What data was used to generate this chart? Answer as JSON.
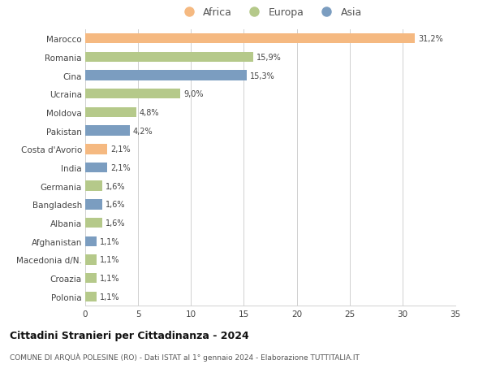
{
  "categories": [
    "Marocco",
    "Romania",
    "Cina",
    "Ucraina",
    "Moldova",
    "Pakistan",
    "Costa d'Avorio",
    "India",
    "Germania",
    "Bangladesh",
    "Albania",
    "Afghanistan",
    "Macedonia d/N.",
    "Croazia",
    "Polonia"
  ],
  "values": [
    31.2,
    15.9,
    15.3,
    9.0,
    4.8,
    4.2,
    2.1,
    2.1,
    1.6,
    1.6,
    1.6,
    1.1,
    1.1,
    1.1,
    1.1
  ],
  "labels": [
    "31,2%",
    "15,9%",
    "15,3%",
    "9,0%",
    "4,8%",
    "4,2%",
    "2,1%",
    "2,1%",
    "1,6%",
    "1,6%",
    "1,6%",
    "1,1%",
    "1,1%",
    "1,1%",
    "1,1%"
  ],
  "continents": [
    "Africa",
    "Europa",
    "Asia",
    "Europa",
    "Europa",
    "Asia",
    "Africa",
    "Asia",
    "Europa",
    "Asia",
    "Europa",
    "Asia",
    "Europa",
    "Europa",
    "Europa"
  ],
  "colors": {
    "Africa": "#F5B981",
    "Europa": "#B5C98A",
    "Asia": "#7B9DC0"
  },
  "legend_order": [
    "Africa",
    "Europa",
    "Asia"
  ],
  "title": "Cittadini Stranieri per Cittadinanza - 2024",
  "subtitle": "COMUNE DI ARQUÀ POLESINE (RO) - Dati ISTAT al 1° gennaio 2024 - Elaborazione TUTTITALIA.IT",
  "xlim": [
    0,
    35
  ],
  "xticks": [
    0,
    5,
    10,
    15,
    20,
    25,
    30,
    35
  ],
  "background_color": "#ffffff",
  "grid_color": "#d0d0d0",
  "bar_height": 0.55,
  "figsize": [
    6.0,
    4.6
  ],
  "dpi": 100
}
